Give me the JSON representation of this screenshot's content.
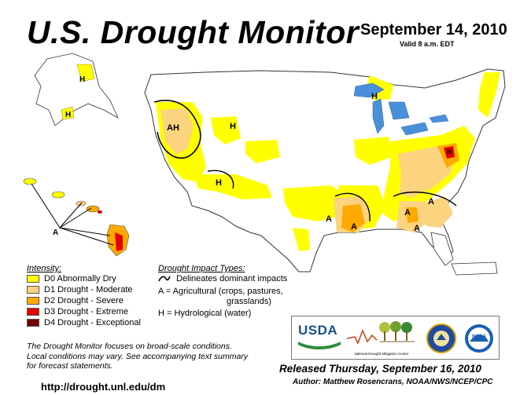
{
  "header": {
    "title": "U.S. Drought Monitor",
    "date": "September 14, 2010",
    "valid": "Valid 8 a.m. EDT"
  },
  "legend": {
    "heading": "Intensity:",
    "items": [
      {
        "label": "D0 Abnormally Dry",
        "color": "#ffff00"
      },
      {
        "label": "D1 Drought - Moderate",
        "color": "#fcd37f"
      },
      {
        "label": "D2 Drought - Severe",
        "color": "#ffaa00"
      },
      {
        "label": "D3 Drought - Extreme",
        "color": "#e60000"
      },
      {
        "label": "D4 Drought - Exceptional",
        "color": "#730000"
      }
    ]
  },
  "impacts": {
    "heading": "Drought Impact Types:",
    "delineates": "Delineates dominant impacts",
    "ag_line1": "A = Agricultural (crops, pastures,",
    "ag_line2": "grasslands)",
    "hydro": "H = Hydrological (water)"
  },
  "map_labels": {
    "ak_h1": "H",
    "ak_h2": "H",
    "hi_a": "A",
    "nw_ah": "AH",
    "mt_h": "H",
    "nv_h": "H",
    "mi_h": "H",
    "sc_a1": "A",
    "sc_a2": "A",
    "se_a1": "A",
    "se_a2": "A",
    "se_a3": "A"
  },
  "note": {
    "line1": "The Drought Monitor focuses on broad-scale conditions.",
    "line2": "Local conditions may vary. See accompanying text summary",
    "line3": "for forecast statements."
  },
  "url": "http://drought.unl.edu/dm",
  "released": "Released Thursday, September 16, 2010",
  "author": "Author: Matthew Rosencrans, NOAA/NWS/NCEP/CPC",
  "logos": {
    "usda": "USDA",
    "ndmc": "National Drought Mitigation Center",
    "noaa": "NOAA"
  }
}
